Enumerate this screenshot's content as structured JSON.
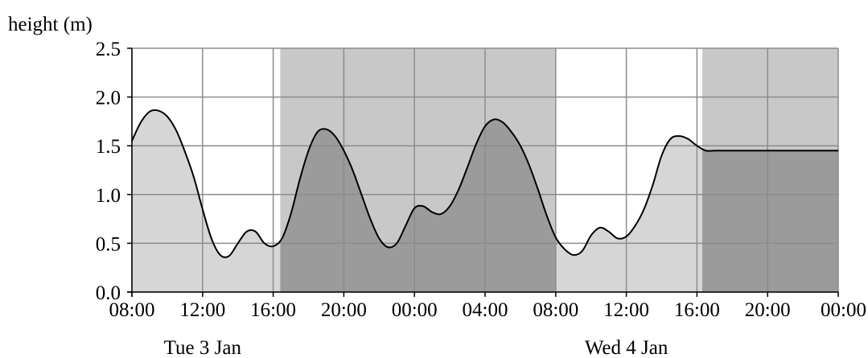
{
  "chart_data": {
    "type": "area",
    "ylabel": "height (m)",
    "ylim": [
      0,
      2.5
    ],
    "yticks": [
      "0.0",
      "0.5",
      "1.0",
      "1.5",
      "2.0",
      "2.5"
    ],
    "xlim_hours": [
      0,
      40
    ],
    "xticks": [
      "08:00",
      "12:00",
      "16:00",
      "20:00",
      "00:00",
      "04:00",
      "08:00",
      "12:00",
      "16:00",
      "20:00",
      "00:00"
    ],
    "date_labels": [
      {
        "text": "Tue 3 Jan",
        "at_hour": 4
      },
      {
        "text": "Wed 4 Jan",
        "at_hour": 28
      }
    ],
    "night_bands_hours": [
      [
        8.4,
        24.0
      ],
      [
        32.3,
        40.0
      ]
    ],
    "grid": true,
    "colors": {
      "day_fill": "#d6d6d6",
      "night_band": "#c8c8c8",
      "night_fill": "#9b9b9b",
      "line": "#000000",
      "grid": "#8c8c8c"
    },
    "series": [
      {
        "x": [
          0,
          0.5,
          1,
          1.5,
          2,
          2.5,
          3,
          3.5,
          4,
          4.5,
          5,
          5.5,
          6,
          6.5,
          7,
          7.5,
          8,
          8.5,
          9,
          9.5,
          10,
          10.5,
          11,
          11.5,
          12,
          12.5,
          13,
          13.5,
          14,
          14.5,
          15,
          15.5,
          16,
          16.5,
          17,
          17.5,
          18,
          18.5,
          19,
          19.5,
          20,
          20.5,
          21,
          21.5,
          22,
          22.5,
          23,
          23.5,
          24,
          24.5,
          25,
          25.5,
          26,
          26.5,
          27,
          27.5,
          28,
          28.5,
          29,
          29.5,
          30,
          30.5,
          31,
          31.5,
          32,
          32.5,
          33,
          33.5,
          34,
          34.5,
          35,
          35.5,
          36,
          36.5,
          37,
          37.5,
          38,
          38.5,
          39,
          39.5,
          40
        ],
        "values": [
          1.55,
          1.74,
          1.85,
          1.86,
          1.8,
          1.66,
          1.44,
          1.18,
          0.85,
          0.55,
          0.38,
          0.37,
          0.5,
          0.62,
          0.62,
          0.5,
          0.47,
          0.55,
          0.8,
          1.15,
          1.45,
          1.64,
          1.67,
          1.6,
          1.45,
          1.25,
          1.0,
          0.75,
          0.55,
          0.46,
          0.5,
          0.68,
          0.86,
          0.88,
          0.82,
          0.8,
          0.88,
          1.05,
          1.28,
          1.52,
          1.7,
          1.77,
          1.74,
          1.64,
          1.5,
          1.3,
          1.05,
          0.78,
          0.56,
          0.44,
          0.38,
          0.42,
          0.58,
          0.66,
          0.62,
          0.55,
          0.57,
          0.68,
          0.85,
          1.1,
          1.4,
          1.57,
          1.6,
          1.57,
          1.5,
          1.45,
          1.45,
          1.45,
          1.45,
          1.45,
          1.45,
          1.45,
          1.45,
          1.45,
          1.45,
          1.45,
          1.45,
          1.45,
          1.45,
          1.45,
          1.45
        ]
      }
    ]
  }
}
